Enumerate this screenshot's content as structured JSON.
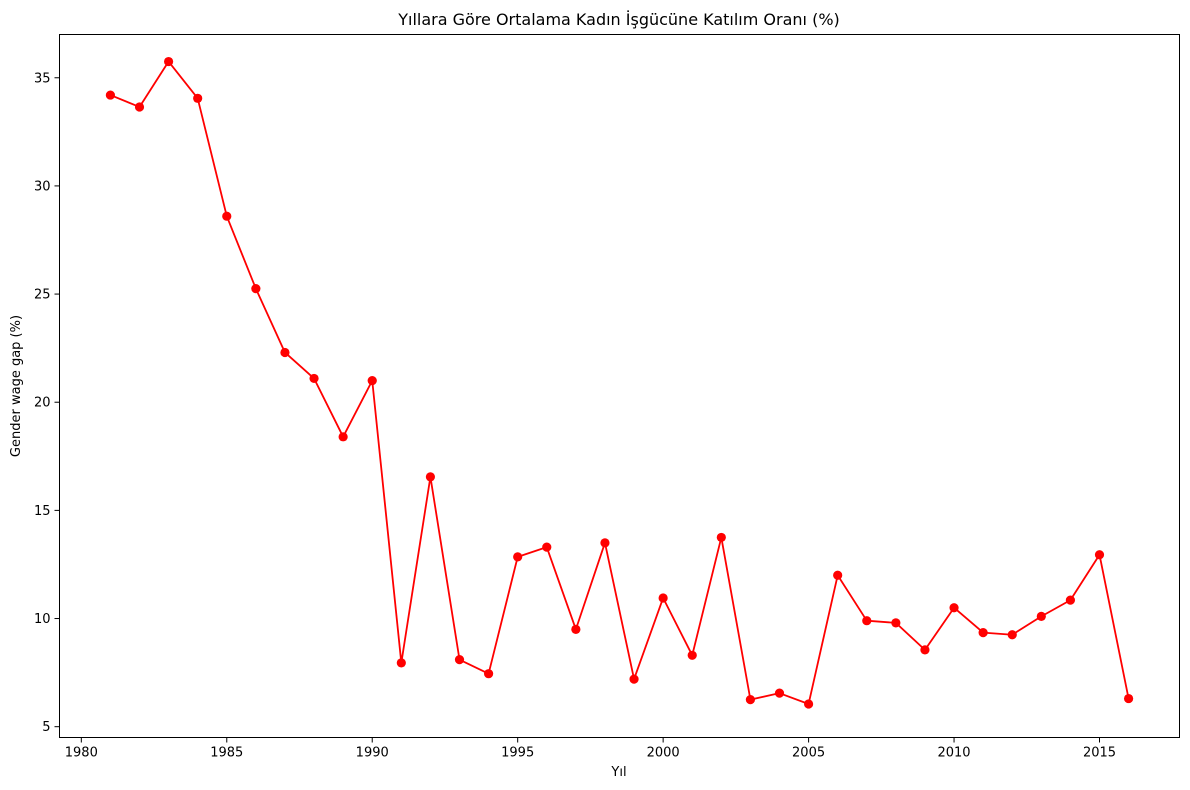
{
  "chart_data": {
    "type": "line",
    "title": "Yıllara Göre Ortalama Kadın İşgücüne Katılım Oranı (%)",
    "xlabel": "Yıl",
    "ylabel": "Gender wage gap (%)",
    "xlim": [
      1979.25,
      2017.75
    ],
    "ylim": [
      4.5,
      37.0
    ],
    "xticks": [
      1980,
      1985,
      1990,
      1995,
      2000,
      2005,
      2010,
      2015
    ],
    "yticks": [
      5,
      10,
      15,
      20,
      25,
      30,
      35
    ],
    "grid": false,
    "legend": "none",
    "series": [
      {
        "color": "#ff0000",
        "marker": "circle",
        "points": [
          [
            1981,
            34.2
          ],
          [
            1982,
            33.65
          ],
          [
            1983,
            35.75
          ],
          [
            1984,
            34.05
          ],
          [
            1985,
            28.6
          ],
          [
            1986,
            25.25
          ],
          [
            1987,
            22.3
          ],
          [
            1988,
            21.1
          ],
          [
            1989,
            18.4
          ],
          [
            1990,
            21.0
          ],
          [
            1991,
            7.95
          ],
          [
            1992,
            16.55
          ],
          [
            1993,
            8.1
          ],
          [
            1994,
            7.45
          ],
          [
            1995,
            12.85
          ],
          [
            1996,
            13.3
          ],
          [
            1997,
            9.5
          ],
          [
            1998,
            13.5
          ],
          [
            1999,
            7.2
          ],
          [
            2000,
            10.95
          ],
          [
            2001,
            8.3
          ],
          [
            2002,
            13.75
          ],
          [
            2003,
            6.25
          ],
          [
            2004,
            6.55
          ],
          [
            2005,
            6.05
          ],
          [
            2006,
            12.0
          ],
          [
            2007,
            9.9
          ],
          [
            2008,
            9.8
          ],
          [
            2009,
            8.55
          ],
          [
            2010,
            10.5
          ],
          [
            2011,
            9.35
          ],
          [
            2012,
            9.25
          ],
          [
            2013,
            10.1
          ],
          [
            2014,
            10.85
          ],
          [
            2015,
            12.95
          ],
          [
            2016,
            6.3
          ]
        ]
      }
    ]
  }
}
